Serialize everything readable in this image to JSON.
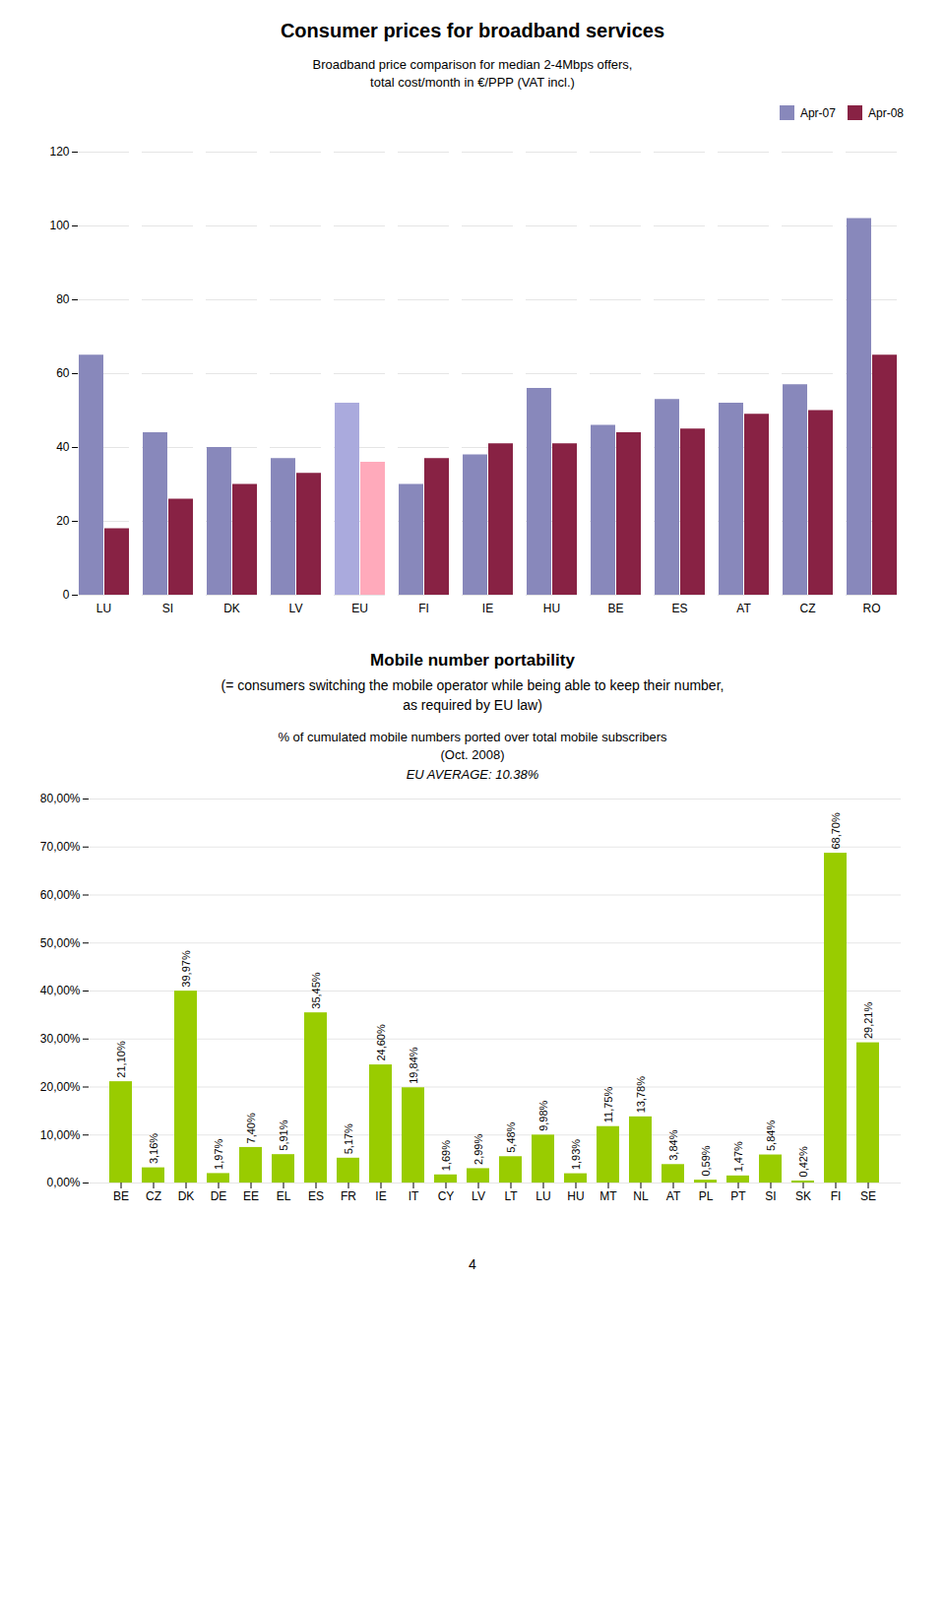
{
  "title": "Consumer prices for broadband services",
  "page_number": "4",
  "chart_data": [
    {
      "type": "bar",
      "subtitle": [
        "Broadband price comparison for median 2-4Mbps offers,",
        "total cost/month in €/PPP (VAT incl.)"
      ],
      "categories": [
        "LU",
        "SI",
        "DK",
        "LV",
        "EU",
        "FI",
        "IE",
        "HU",
        "BE",
        "ES",
        "AT",
        "CZ",
        "RO"
      ],
      "series": [
        {
          "name": "Apr-07",
          "color": "#8888bb",
          "colors": [
            "#8888bb",
            "#8888bb",
            "#8888bb",
            "#8888bb",
            "#aaaadd",
            "#8888bb",
            "#8888bb",
            "#8888bb",
            "#8888bb",
            "#8888bb",
            "#8888bb",
            "#8888bb",
            "#8888bb"
          ],
          "values": [
            65,
            44,
            40,
            37,
            52,
            30,
            38,
            56,
            46,
            53,
            52,
            57,
            102
          ]
        },
        {
          "name": "Apr-08",
          "color": "#882244",
          "colors": [
            "#882244",
            "#882244",
            "#882244",
            "#882244",
            "#ffaabb",
            "#882244",
            "#882244",
            "#882244",
            "#882244",
            "#882244",
            "#882244",
            "#882244",
            "#882244"
          ],
          "values": [
            18,
            26,
            30,
            33,
            36,
            37,
            41,
            41,
            44,
            45,
            49,
            50,
            65
          ]
        }
      ],
      "ylim": [
        0,
        120
      ],
      "yticks": [
        0,
        20,
        40,
        60,
        80,
        100,
        120
      ],
      "grid": true,
      "legend": "upper right"
    },
    {
      "type": "bar",
      "title": "Mobile number portability",
      "subtitle": [
        "(= consumers switching the mobile operator while being able to keep their number,",
        "as required by EU law)"
      ],
      "annotations": [
        "% of cumulated mobile numbers ported over total mobile subscribers",
        "(Oct. 2008)",
        "EU AVERAGE: 10.38%"
      ],
      "categories": [
        "BE",
        "CZ",
        "DK",
        "DE",
        "EE",
        "EL",
        "ES",
        "FR",
        "IE",
        "IT",
        "CY",
        "LV",
        "LT",
        "LU",
        "HU",
        "MT",
        "NL",
        "AT",
        "PL",
        "PT",
        "SI",
        "SK",
        "FI",
        "SE"
      ],
      "values": [
        21.1,
        3.16,
        39.97,
        1.97,
        7.4,
        5.91,
        35.45,
        5.17,
        24.6,
        19.84,
        1.69,
        2.99,
        5.48,
        9.98,
        1.93,
        11.75,
        13.78,
        3.84,
        0.59,
        1.47,
        5.84,
        0.42,
        68.7,
        29.21
      ],
      "value_labels": [
        "21,10%",
        "3,16%",
        "39,97%",
        "1,97%",
        "7,40%",
        "5,91%",
        "35,45%",
        "5,17%",
        "24,60%",
        "19,84%",
        "1,69%",
        "2,99%",
        "5,48%",
        "9,98%",
        "1,93%",
        "11,75%",
        "13,78%",
        "3,84%",
        "0,59%",
        "1,47%",
        "5,84%",
        "0,42%",
        "68,70%",
        "29,21%"
      ],
      "data_labels": true,
      "color": "#99cc00",
      "ylim": [
        0,
        80
      ],
      "yticks": [
        {
          "value": 0,
          "label": "0,00%"
        },
        {
          "value": 10,
          "label": "10,00%"
        },
        {
          "value": 20,
          "label": "20,00%"
        },
        {
          "value": 30,
          "label": "30,00%"
        },
        {
          "value": 40,
          "label": "40,00%"
        },
        {
          "value": 50,
          "label": "50,00%"
        },
        {
          "value": 60,
          "label": "60,00%"
        },
        {
          "value": 70,
          "label": "70,00%"
        },
        {
          "value": 80,
          "label": "80,00%"
        }
      ],
      "grid": true
    }
  ]
}
